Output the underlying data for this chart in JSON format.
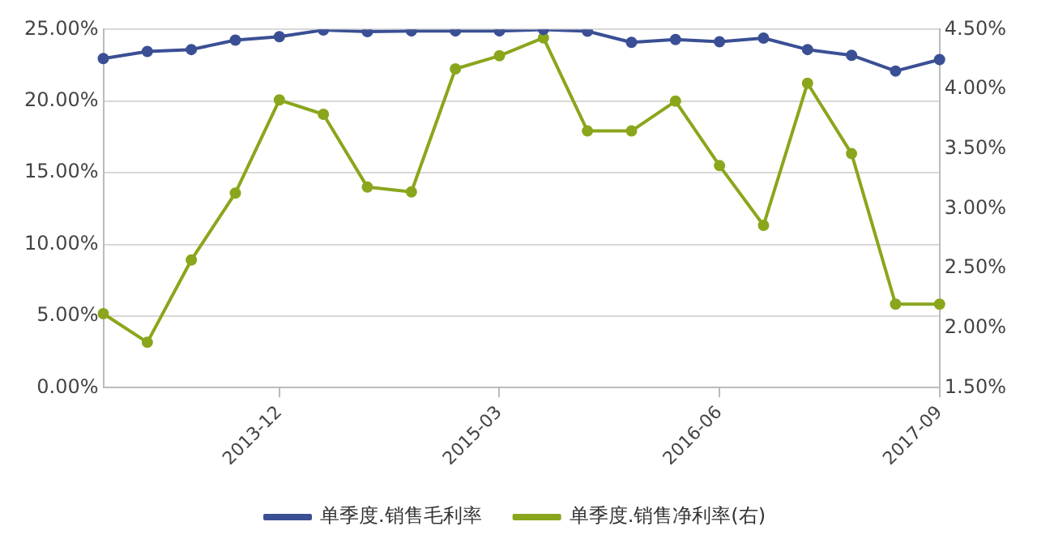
{
  "chart_data": {
    "type": "line",
    "categories": [
      null,
      null,
      null,
      null,
      "2013-12",
      null,
      null,
      null,
      null,
      "2015-03",
      null,
      null,
      null,
      null,
      "2016-06",
      null,
      null,
      null,
      null,
      "2017-09"
    ],
    "series": [
      {
        "name": "单季度.销售毛利率",
        "color": "#3a4f94",
        "values": [
          22.97,
          23.47,
          23.6,
          24.26,
          24.5,
          24.96,
          24.85,
          24.9,
          24.9,
          24.9,
          25.0,
          24.88,
          24.1,
          24.3,
          24.15,
          24.4,
          23.6,
          23.2,
          22.1,
          22.9
        ]
      },
      {
        "name": "单季度.销售净利率(右)",
        "color": "#8aa61c",
        "axis": "y2",
        "values": [
          2.12,
          1.88,
          2.57,
          3.13,
          3.91,
          3.79,
          3.18,
          3.14,
          4.17,
          4.28,
          4.43,
          3.65,
          3.65,
          3.9,
          3.36,
          2.86,
          4.05,
          3.46,
          2.2,
          2.2
        ]
      }
    ],
    "ylim": [
      0,
      25
    ],
    "yticks": [
      {
        "value": 0,
        "label": "0.00%"
      },
      {
        "value": 5,
        "label": "5.00%"
      },
      {
        "value": 10,
        "label": "10.00%"
      },
      {
        "value": 15,
        "label": "15.00%"
      },
      {
        "value": 20,
        "label": "20.00%"
      },
      {
        "value": 25,
        "label": "25.00%"
      }
    ],
    "y2lim": [
      1.5,
      4.5
    ],
    "y2ticks": [
      {
        "value": 1.5,
        "label": "1.50%"
      },
      {
        "value": 2,
        "label": "2.00%"
      },
      {
        "value": 2.5,
        "label": "2.50%"
      },
      {
        "value": 3,
        "label": "3.00%"
      },
      {
        "value": 3.5,
        "label": "3.50%"
      },
      {
        "value": 4,
        "label": "4.00%"
      },
      {
        "value": 4.5,
        "label": "4.50%"
      }
    ],
    "grid": "y",
    "legend": "bottom",
    "marker": "circle",
    "line_style": "solid"
  }
}
